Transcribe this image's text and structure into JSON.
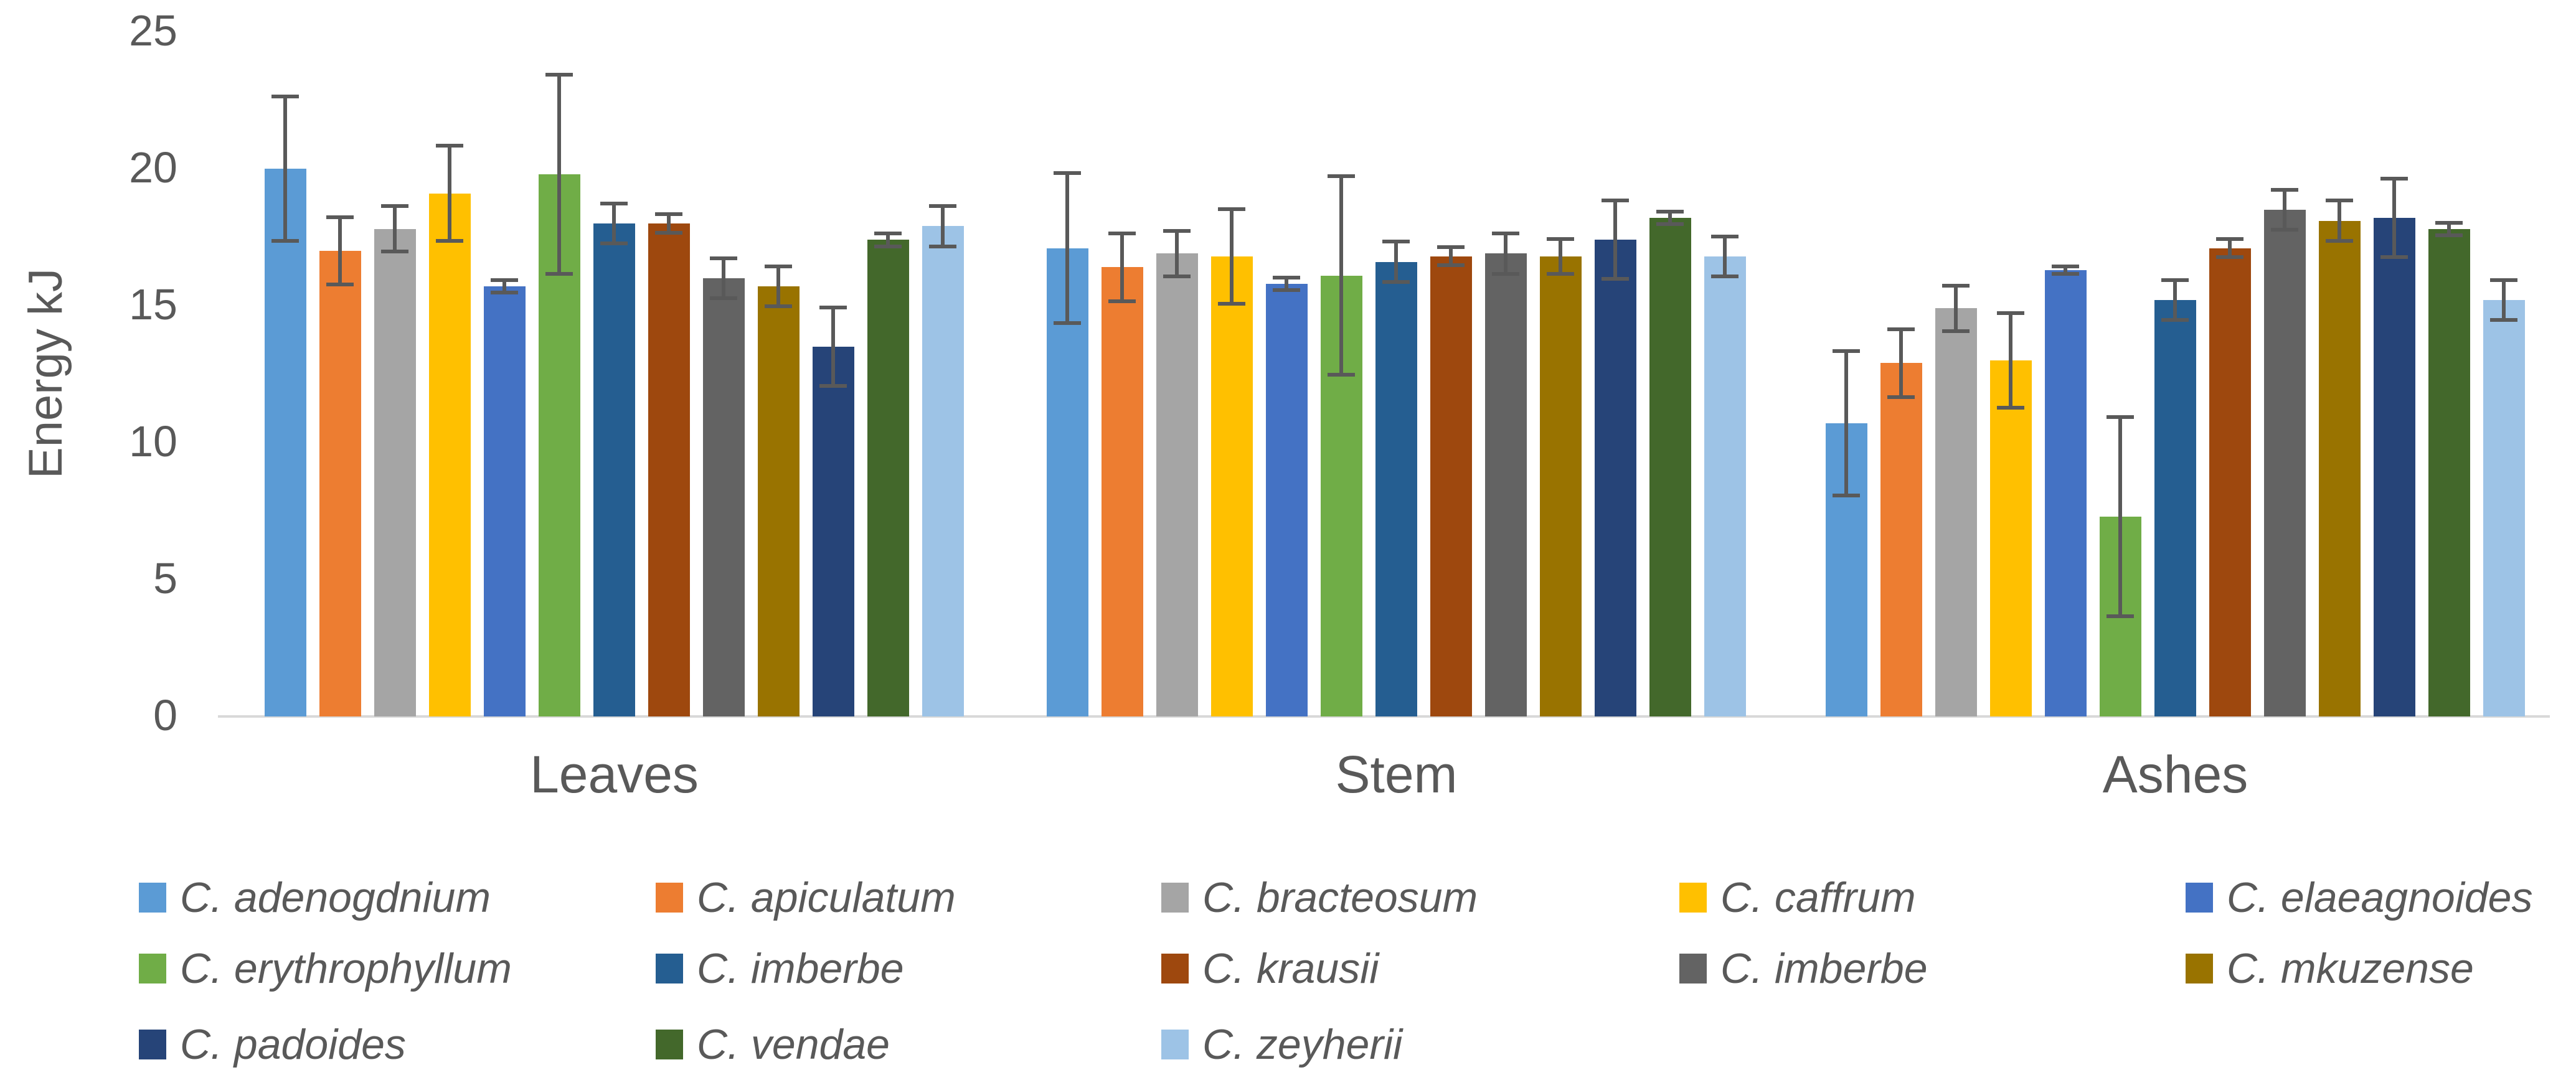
{
  "chart_data": {
    "type": "bar",
    "title": "",
    "xlabel": "",
    "ylabel": "Energy kJ",
    "ylim": [
      0,
      25
    ],
    "yticks": [
      0,
      5,
      10,
      15,
      20,
      25
    ],
    "grid": false,
    "legend_position": "bottom",
    "error_bars": true,
    "categories": [
      "Leaves",
      "Stem",
      "Ashes"
    ],
    "series": [
      {
        "name": "C. adenogdnium",
        "color": "#5B9BD5",
        "values": [
          20.0,
          17.1,
          10.7
        ],
        "errors": [
          2.7,
          2.8,
          2.7
        ]
      },
      {
        "name": "C. apiculatum",
        "color": "#ED7D31",
        "values": [
          17.0,
          16.4,
          12.9
        ],
        "errors": [
          1.3,
          1.3,
          1.3
        ]
      },
      {
        "name": "C. bracteosum",
        "color": "#A5A5A5",
        "values": [
          17.8,
          16.9,
          14.9
        ],
        "errors": [
          0.9,
          0.9,
          0.9
        ]
      },
      {
        "name": "C. caffrum",
        "color": "#FFC000",
        "values": [
          19.1,
          16.8,
          13.0
        ],
        "errors": [
          1.8,
          1.8,
          1.8
        ]
      },
      {
        "name": "C. elaeagnoides",
        "color": "#4472C4",
        "values": [
          15.7,
          15.8,
          16.3
        ],
        "errors": [
          0.3,
          0.3,
          0.2
        ]
      },
      {
        "name": "C. erythrophyllum",
        "color": "#70AD47",
        "values": [
          19.8,
          16.1,
          7.3
        ],
        "errors": [
          3.7,
          3.7,
          3.7
        ]
      },
      {
        "name": "C. imberbe",
        "color": "#255E91",
        "values": [
          18.0,
          16.6,
          15.2
        ],
        "errors": [
          0.8,
          0.8,
          0.8
        ]
      },
      {
        "name": "C. krausii",
        "color": "#9E480E",
        "values": [
          18.0,
          16.8,
          17.1
        ],
        "errors": [
          0.4,
          0.4,
          0.4
        ]
      },
      {
        "name": "C. imberbe",
        "color": "#636363",
        "values": [
          16.0,
          16.9,
          18.5
        ],
        "errors": [
          0.8,
          0.8,
          0.8
        ]
      },
      {
        "name": "C. mkuzense",
        "color": "#997300",
        "values": [
          15.7,
          16.8,
          18.1
        ],
        "errors": [
          0.8,
          0.7,
          0.8
        ]
      },
      {
        "name": "C. padoides",
        "color": "#264478",
        "values": [
          13.5,
          17.4,
          18.2
        ],
        "errors": [
          1.5,
          1.5,
          1.5
        ]
      },
      {
        "name": "C. vendae",
        "color": "#43682B",
        "values": [
          17.4,
          18.2,
          17.8
        ],
        "errors": [
          0.3,
          0.3,
          0.3
        ]
      },
      {
        "name": "C. zeyherii",
        "color": "#9DC3E6",
        "values": [
          17.9,
          16.8,
          15.2
        ],
        "errors": [
          0.8,
          0.8,
          0.8
        ]
      }
    ]
  },
  "colors": {
    "axis_line": "#D9D9D9",
    "label_text": "#595959",
    "error_bar": "#595959",
    "background": "#FFFFFF"
  }
}
